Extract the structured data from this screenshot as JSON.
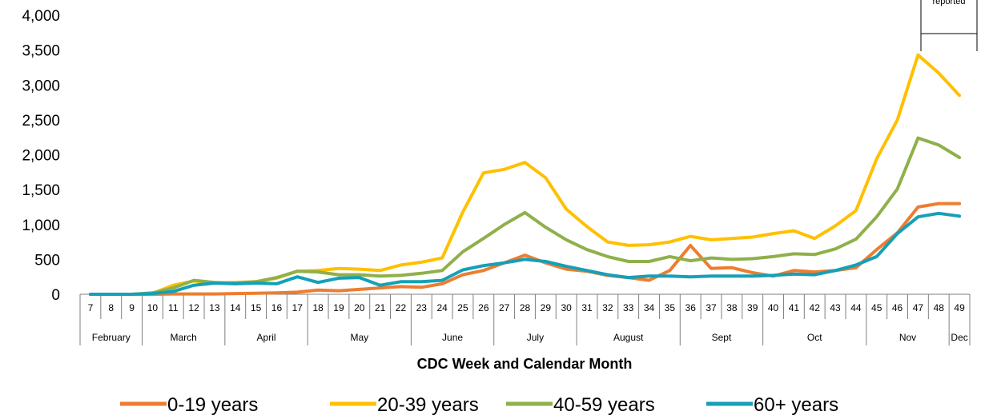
{
  "chart_data": {
    "type": "line",
    "title": "",
    "xlabel": "CDC Week and Calendar Month",
    "ylabel": "",
    "ylim": [
      0,
      4000
    ],
    "yticks": [
      "4,000",
      "3,500",
      "3,000",
      "2,500",
      "2,000",
      "1,500",
      "1,000",
      "500",
      "0"
    ],
    "ytick_values": [
      4000,
      3500,
      3000,
      2500,
      2000,
      1500,
      1000,
      500,
      0
    ],
    "grid": false,
    "legend_position": "bottom",
    "annotation": "reported",
    "weeks": [
      "7",
      "8",
      "9",
      "10",
      "11",
      "12",
      "13",
      "14",
      "15",
      "16",
      "17",
      "18",
      "19",
      "20",
      "21",
      "22",
      "23",
      "24",
      "25",
      "26",
      "27",
      "28",
      "29",
      "30",
      "31",
      "32",
      "33",
      "34",
      "35",
      "36",
      "37",
      "38",
      "39",
      "40",
      "41",
      "42",
      "43",
      "44",
      "45",
      "46",
      "47",
      "48",
      "49"
    ],
    "months": [
      {
        "label": "February",
        "start_week": "7",
        "end_week": "9"
      },
      {
        "label": "March",
        "start_week": "10",
        "end_week": "13"
      },
      {
        "label": "April",
        "start_week": "14",
        "end_week": "17"
      },
      {
        "label": "May",
        "start_week": "18",
        "end_week": "22"
      },
      {
        "label": "June",
        "start_week": "23",
        "end_week": "26"
      },
      {
        "label": "July",
        "start_week": "27",
        "end_week": "30"
      },
      {
        "label": "August",
        "start_week": "31",
        "end_week": "35"
      },
      {
        "label": "Sept",
        "start_week": "36",
        "end_week": "39"
      },
      {
        "label": "Oct",
        "start_week": "40",
        "end_week": "44"
      },
      {
        "label": "Nov",
        "start_week": "45",
        "end_week": "48"
      },
      {
        "label": "Dec",
        "start_week": "49",
        "end_week": "49"
      }
    ],
    "series": [
      {
        "name": "0-19 years",
        "color": "#ED7D31",
        "values": [
          0,
          0,
          0,
          0,
          5,
          5,
          5,
          10,
          15,
          20,
          30,
          60,
          50,
          70,
          90,
          110,
          100,
          150,
          280,
          340,
          450,
          560,
          450,
          360,
          330,
          270,
          240,
          200,
          340,
          700,
          370,
          380,
          310,
          260,
          340,
          320,
          340,
          380,
          640,
          880,
          1250,
          1300,
          1300
        ]
      },
      {
        "name": "20-39 years",
        "color": "#FFC000",
        "values": [
          0,
          0,
          0,
          10,
          130,
          190,
          160,
          170,
          180,
          230,
          330,
          340,
          370,
          360,
          340,
          420,
          460,
          520,
          1180,
          1740,
          1790,
          1890,
          1670,
          1220,
          970,
          750,
          700,
          710,
          750,
          830,
          780,
          800,
          820,
          870,
          910,
          800,
          980,
          1200,
          1940,
          2500,
          3430,
          3170,
          2850
        ]
      },
      {
        "name": "40-59 years",
        "color": "#8FB04A",
        "values": [
          0,
          0,
          0,
          20,
          90,
          200,
          170,
          160,
          180,
          240,
          330,
          320,
          280,
          280,
          260,
          270,
          300,
          340,
          610,
          800,
          1000,
          1170,
          960,
          780,
          640,
          540,
          470,
          470,
          540,
          480,
          520,
          500,
          510,
          540,
          580,
          570,
          650,
          790,
          1110,
          1510,
          2240,
          2140,
          1960
        ]
      },
      {
        "name": "60+ years",
        "color": "#14A0B8",
        "values": [
          0,
          0,
          0,
          10,
          40,
          130,
          160,
          150,
          160,
          150,
          250,
          170,
          230,
          240,
          130,
          180,
          180,
          200,
          350,
          410,
          450,
          500,
          470,
          400,
          340,
          280,
          240,
          260,
          260,
          250,
          260,
          260,
          260,
          270,
          290,
          280,
          340,
          420,
          540,
          870,
          1110,
          1160,
          1120
        ]
      }
    ]
  }
}
